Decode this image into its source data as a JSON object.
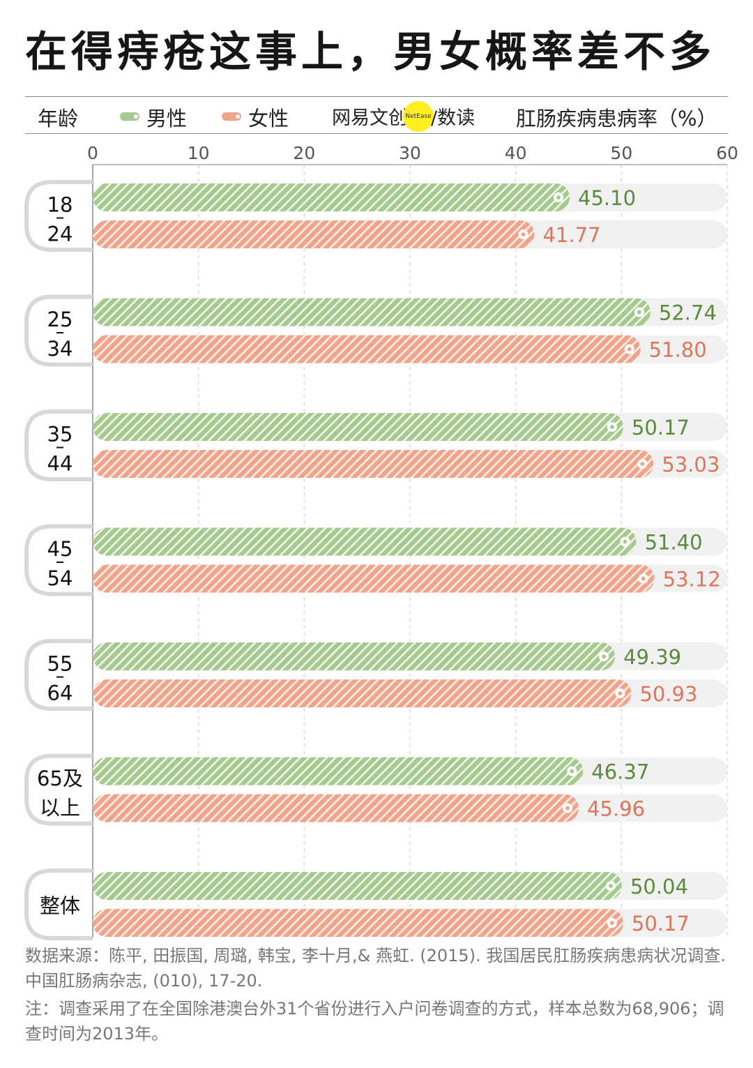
{
  "title": "在得痔疮这事上，男女概率差不多",
  "header": {
    "age_label": "年龄",
    "legend_male": "男性",
    "legend_female": "女性",
    "brand": "网易文创",
    "brand_badge": "NetEase",
    "brand_suffix": "/数读",
    "metric_label": "肛肠疾病患病率（%）"
  },
  "colors": {
    "male": "#a6c98f",
    "female": "#f2a48a",
    "male_text": "#5a8a3c",
    "female_text": "#e07458",
    "track": "#f1f1f1"
  },
  "chart_data": {
    "type": "bar",
    "orientation": "horizontal",
    "xlim": [
      0,
      60
    ],
    "x_ticks": [
      "0",
      "10",
      "20",
      "30",
      "40",
      "50",
      "60"
    ],
    "categories": [
      [
        "18",
        "24"
      ],
      [
        "25",
        "34"
      ],
      [
        "35",
        "44"
      ],
      [
        "45",
        "54"
      ],
      [
        "55",
        "64"
      ],
      [
        "65及",
        "以上"
      ],
      [
        "整体"
      ]
    ],
    "series": [
      {
        "name": "男性",
        "values": [
          45.1,
          52.74,
          50.17,
          51.4,
          49.39,
          46.37,
          50.04
        ],
        "labels": [
          "45.10",
          "52.74",
          "50.17",
          "51.40",
          "49.39",
          "46.37",
          "50.04"
        ]
      },
      {
        "name": "女性",
        "values": [
          41.77,
          51.8,
          53.03,
          53.12,
          50.93,
          45.96,
          50.17
        ],
        "labels": [
          "41.77",
          "51.80",
          "53.03",
          "53.12",
          "50.93",
          "45.96",
          "50.17"
        ]
      }
    ],
    "grid": "vertical-dashed",
    "legend": "top"
  },
  "footer": {
    "source": "数据来源：陈平, 田振国, 周璐, 韩宝, 李十月,& 燕虹. (2015). 我国居民肛肠疾病患病状况调查. 中国肛肠病杂志, (010), 17-20.",
    "note": "注：调查采用了在全国除港澳台外31个省份进行入户问卷调查的方式，样本总数为68,906；调查时间为2013年。"
  }
}
